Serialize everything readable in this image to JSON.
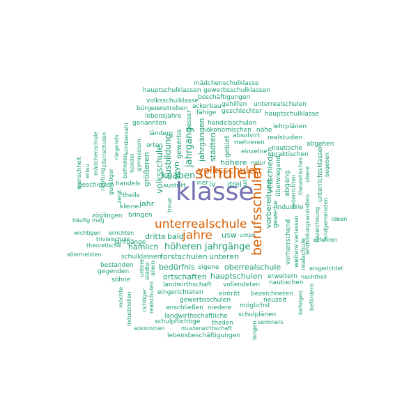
{
  "palette": {
    "teal": "#1b9e77",
    "orange": "#d95f02",
    "purple": "#7570b3"
  },
  "words": {
    "klasse": "klasse",
    "schulen": "schulen",
    "berufsschulen": "berufsschulen",
    "unterrealschule": "unterrealschule",
    "jahre": "jahre",
    "volksschulen": "volksschulen",
    "höheren_jahrgänge": "höheren jahrgänge",
    "knaben": "knaben",
    "jahrgang": "jahrgang",
    "mädchenschulklasse": "mädchenschulklasse",
    "hauptschulklassen_1": "hauptschulklassen",
    "gewerbsschulklassen": "gewerbsschulklassen",
    "beschäftigungen": "beschäftigungen",
    "volksschulklasse": "volksschulklasse",
    "ackerbau": "ackerbau",
    "gehilfen": "gehilfen",
    "unterrealschulen": "unterrealschulen",
    "bürger": "bürger",
    "anstreben": "anstreben",
    "fähige": "fähige",
    "geschlechter": "geschlechter",
    "lebensjahre": "lebensjahre",
    "hauptschulklasse": "hauptschulklasse",
    "genannten": "genannten",
    "besser": "besser",
    "handelsschulen": "handelsschulen",
    "lehrplänen": "lehrplänen",
    "ländern": "ländern",
    "ökonomischen": "ökonomischen",
    "nähe": "nähe",
    "absolvirt": "absolvirt",
    "realstudien": "realstudien",
    "orten": "orten",
    "mehreren": "mehreren",
    "abgehen": "abgehen",
    "einzelne": "einzelne",
    "nautische": "nautische",
    "praktischen": "praktischen",
    "höhere": "höhere",
    "natur": "natur",
    "iv": "iv",
    "drei": "drei",
    "lud": "lud",
    "austritt": "austritt",
    "jahr": "jahr",
    "theils": "theils",
    "handels": "handels",
    "geschieden": "geschieden",
    "kleine": "kleine",
    "zöglingen": "zöglingen",
    "bringen": "bringen",
    "häufig": "häufig",
    "mag": "mag",
    "industrie": "industrie",
    "gewerbe": "gewerbe",
    "ideen": "ideen",
    "wichtigen": "wichtigen",
    "errichten": "errichten",
    "dritte": "dritte",
    "bald": "bald",
    "usw": "usw",
    "umso": "umso",
    "trivialschule": "trivialschule",
    "jahrgänge": "jahrgänge",
    "theoretische": "theoretische",
    "nämlich": "nämlich",
    "erfahren": "erfahren",
    "allermeisten": "allermeisten",
    "schulklassen": "schulklassen",
    "forstschulen": "forstschulen",
    "unteren": "unteren",
    "bestanden": "bestanden",
    "gegenden": "gegenden",
    "bedürfnis": "bedürfnis",
    "eigene": "eigene",
    "oberrealschule": "oberrealschule",
    "eingerichtet": "eingerichtet",
    "ortschaften": "ortschaften",
    "hauptschulen": "hauptschulen",
    "erweitern": "erweitern",
    "nachtheil": "nachtheil",
    "söhne": "söhne",
    "landwirthschaft": "landwirthschaft",
    "vollendeten": "vollendeten",
    "nautischen": "nautischen",
    "eingerichteten": "eingerichteten",
    "eintritt": "eintritt",
    "bezeichneten": "bezeichneten",
    "gewerbsschulen": "gewerbsschulen",
    "neuzeit": "neuzeit",
    "anschließen": "anschließen",
    "niedere": "niedere",
    "möglichst": "möglichst",
    "landwirthschaftliche": "landwirthschaftliche",
    "schulplänen": "schulplänen",
    "schulpflichtige": "schulpflichtige",
    "theilen": "theilen",
    "seminars": "seminars",
    "ankommen": "ankommen",
    "musterwirthschaft": "musterwirthschaft",
    "lebensbeschäftigungen": "lebensbeschäftigungen",
    "volksschule": "volksschule",
    "ausbildung": "ausbildung",
    "größeren": "größeren",
    "seyn": "seyn",
    "gewerbs": "gewerbs",
    "treue": "treue",
    "jahrgängen": "jahrgängen",
    "städten": "städten",
    "gebiet": "gebiet",
    "verschieden": "verschieden",
    "vorbereitung": "vorbereitung",
    "überwiegend": "überwiegend",
    "abgang": "abgang",
    "vorherrschend": "vorherrschend",
    "weitere": "weitere",
    "realschule": "realschule",
    "unterrichten": "unterrichten",
    "verlassen": "verlassen",
    "theoretisches": "theoretisches",
    "lehrbildungsanstalten": "lehrbildungsanstalten",
    "obere": "obere",
    "unterrichtsklassen": "unterrichtsklassen",
    "bezeichnung": "bezeichnung",
    "landgemeinden": "landgemeinden",
    "begeben": "begeben",
    "befolgen": "befolgen",
    "befördern": "befördern",
    "langen": "langen",
    "industriellen": "industriellen",
    "möchte": "möchte",
    "richtiger": "richtiger",
    "realschulen": "realschulen",
    "untere": "untere",
    "städte": "städte",
    "allein": "allein",
    "menschheit": "menschheit",
    "erlau": "erlau",
    "mädchenschule": "mädchenschule",
    "richtung": "richtung",
    "pfarrschulen": "pfarrschulen",
    "günstiger": "günstiger",
    "niegends": "niegends",
    "befinden": "befinden",
    "zeigt": "zeigt",
    "handel": "handel",
    "schülerzahl": "schülerzahl",
    "gymnasium": "gymnasium",
    "vier": "vier"
  }
}
